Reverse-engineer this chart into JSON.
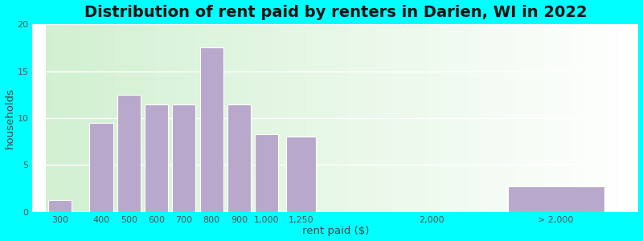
{
  "title": "Distribution of rent paid by renters in Darien, WI in 2022",
  "xlabel": "rent paid ($)",
  "ylabel": "households",
  "bar_color": "#b8a8cc",
  "outer_bg": "#00ffff",
  "categories": [
    "300",
    "400",
    "500",
    "600",
    "700",
    "800",
    "900",
    "1,000",
    "1,250",
    "2,000",
    "> 2,000"
  ],
  "values": [
    1.3,
    9.5,
    12.5,
    11.5,
    11.5,
    17.5,
    11.5,
    8.3,
    8.0,
    0,
    2.7
  ],
  "ylim": [
    0,
    20
  ],
  "yticks": [
    0,
    5,
    10,
    15,
    20
  ],
  "title_fontsize": 14,
  "axis_label_fontsize": 9.5,
  "tick_fontsize": 8
}
